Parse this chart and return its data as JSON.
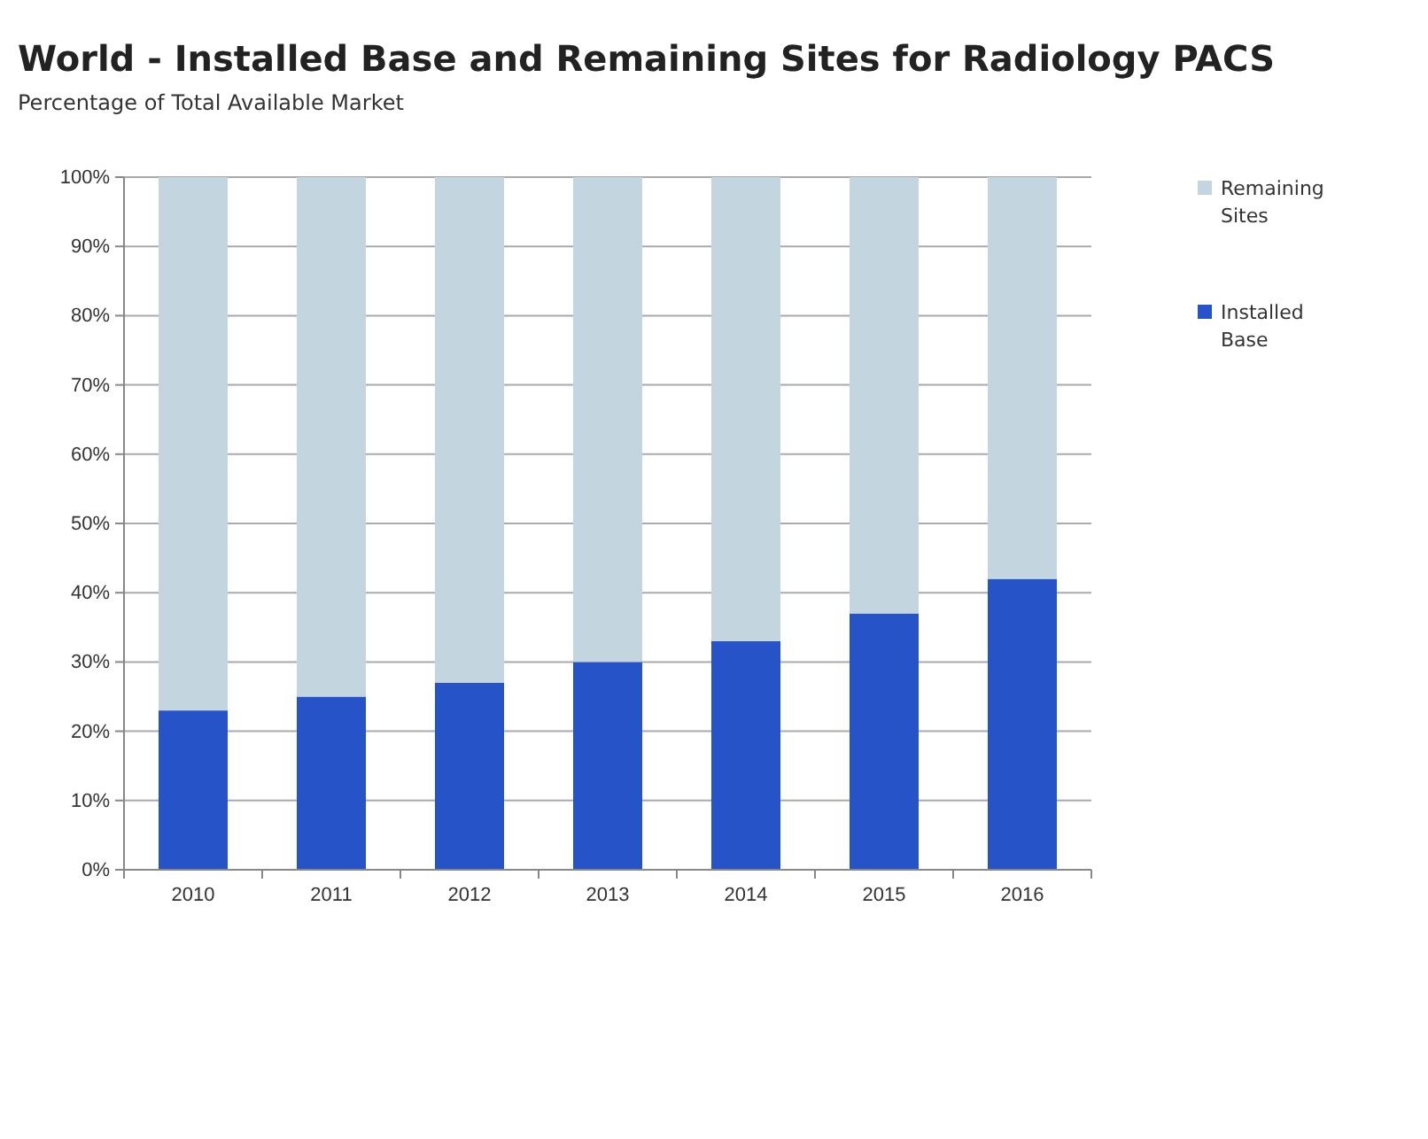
{
  "chart_data": {
    "type": "bar",
    "title": "World - Installed Base and Remaining Sites for Radiology PACS",
    "subtitle": "Percentage of Total Available Market",
    "categories": [
      "2010",
      "2011",
      "2012",
      "2013",
      "2014",
      "2015",
      "2016"
    ],
    "series": [
      {
        "name": "Installed Base",
        "color": "#2753c8",
        "values": [
          23,
          25,
          27,
          30,
          33,
          37,
          42
        ]
      },
      {
        "name": "Remaining Sites",
        "color": "#c3d5df",
        "values": [
          77,
          75,
          73,
          70,
          67,
          63,
          58
        ]
      }
    ],
    "stacked": true,
    "ylim": [
      0,
      100
    ],
    "yticks": [
      {
        "value": 0,
        "label": "0%"
      },
      {
        "value": 10,
        "label": "10%"
      },
      {
        "value": 20,
        "label": "20%"
      },
      {
        "value": 30,
        "label": "30%"
      },
      {
        "value": 40,
        "label": "40%"
      },
      {
        "value": 50,
        "label": "50%"
      },
      {
        "value": 60,
        "label": "60%"
      },
      {
        "value": 70,
        "label": "70%"
      },
      {
        "value": 80,
        "label": "80%"
      },
      {
        "value": 90,
        "label": "90%"
      },
      {
        "value": 100,
        "label": "100%"
      }
    ],
    "grid": "y",
    "legend": "right"
  }
}
